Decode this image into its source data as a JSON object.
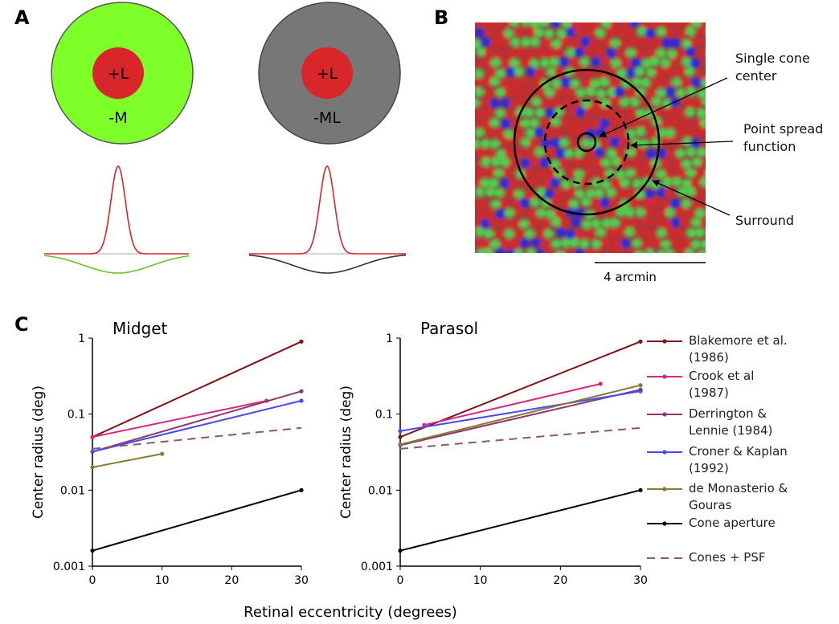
{
  "panels": {
    "a": {
      "letter": "A",
      "left": {
        "center": "+L",
        "surround": "-M"
      },
      "right": {
        "center": "+L",
        "surround": "-ML"
      }
    },
    "b": {
      "letter": "B",
      "labels": [
        "Single cone center",
        "Point spread function",
        "Surround"
      ],
      "scale_bar": "4 arcmin"
    },
    "c": {
      "letter": "C",
      "xlabel": "Retinal eccentricity (degrees)"
    }
  },
  "chart_data": [
    {
      "type": "line",
      "title": "Midget",
      "ylabel": "Center radius (deg)",
      "log_y": true,
      "xlim": [
        0,
        30
      ],
      "xticks": [
        0,
        10,
        20,
        30
      ],
      "ylim": [
        0.001,
        1
      ],
      "yticks": [
        0.001,
        0.01,
        0.1,
        1
      ],
      "series": [
        {
          "color": "#7b1416",
          "x": [
            0,
            30
          ],
          "values": [
            0.05,
            0.9
          ]
        },
        {
          "color": "#d6287f",
          "x": [
            0,
            25
          ],
          "values": [
            0.05,
            0.15
          ]
        },
        {
          "color": "#8b3a6b",
          "x": [
            0,
            30
          ],
          "values": [
            0.032,
            0.2
          ]
        },
        {
          "color": "#4a4af0",
          "x": [
            0,
            30
          ],
          "values": [
            0.032,
            0.15
          ]
        },
        {
          "color": "#8a7a3a",
          "x": [
            0,
            10
          ],
          "values": [
            0.02,
            0.03
          ]
        },
        {
          "color": "#000000",
          "x": [
            0,
            30
          ],
          "values": [
            0.0016,
            0.01
          ]
        },
        {
          "color": "#8b5a5e",
          "dashed": true,
          "x": [
            0,
            30
          ],
          "values": [
            0.035,
            0.066
          ]
        }
      ]
    },
    {
      "type": "line",
      "title": "Parasol",
      "ylabel": "Center radius (deg)",
      "log_y": true,
      "legend": "right",
      "xlim": [
        0,
        30
      ],
      "xticks": [
        0,
        10,
        20,
        30
      ],
      "ylim": [
        0.001,
        1
      ],
      "yticks": [
        0.001,
        0.01,
        0.1,
        1
      ],
      "series": [
        {
          "name": "Blakemore et al. (1986)",
          "color": "#7b1416",
          "x": [
            0,
            30
          ],
          "values": [
            0.05,
            0.9
          ]
        },
        {
          "name": "Crook et al (1987)",
          "color": "#d6287f",
          "x": [
            3,
            25
          ],
          "values": [
            0.072,
            0.25
          ]
        },
        {
          "name": "Derrington & Lennie (1984)",
          "color": "#8b3a6b",
          "x": [
            0,
            30
          ],
          "values": [
            0.039,
            0.21
          ]
        },
        {
          "name": "Croner & Kaplan (1992)",
          "color": "#4a4af0",
          "x": [
            0,
            30
          ],
          "values": [
            0.06,
            0.2
          ]
        },
        {
          "name": "de Monasterio & Gouras",
          "color": "#8a7a3a",
          "x": [
            0,
            30
          ],
          "values": [
            0.04,
            0.24
          ]
        },
        {
          "name": "Cone aperture",
          "color": "#000000",
          "x": [
            0,
            30
          ],
          "values": [
            0.0016,
            0.01
          ]
        },
        {
          "name": "Cones + PSF",
          "color": "#8b5a5e",
          "dashed": true,
          "x": [
            0,
            30
          ],
          "values": [
            0.035,
            0.066
          ]
        }
      ]
    }
  ]
}
